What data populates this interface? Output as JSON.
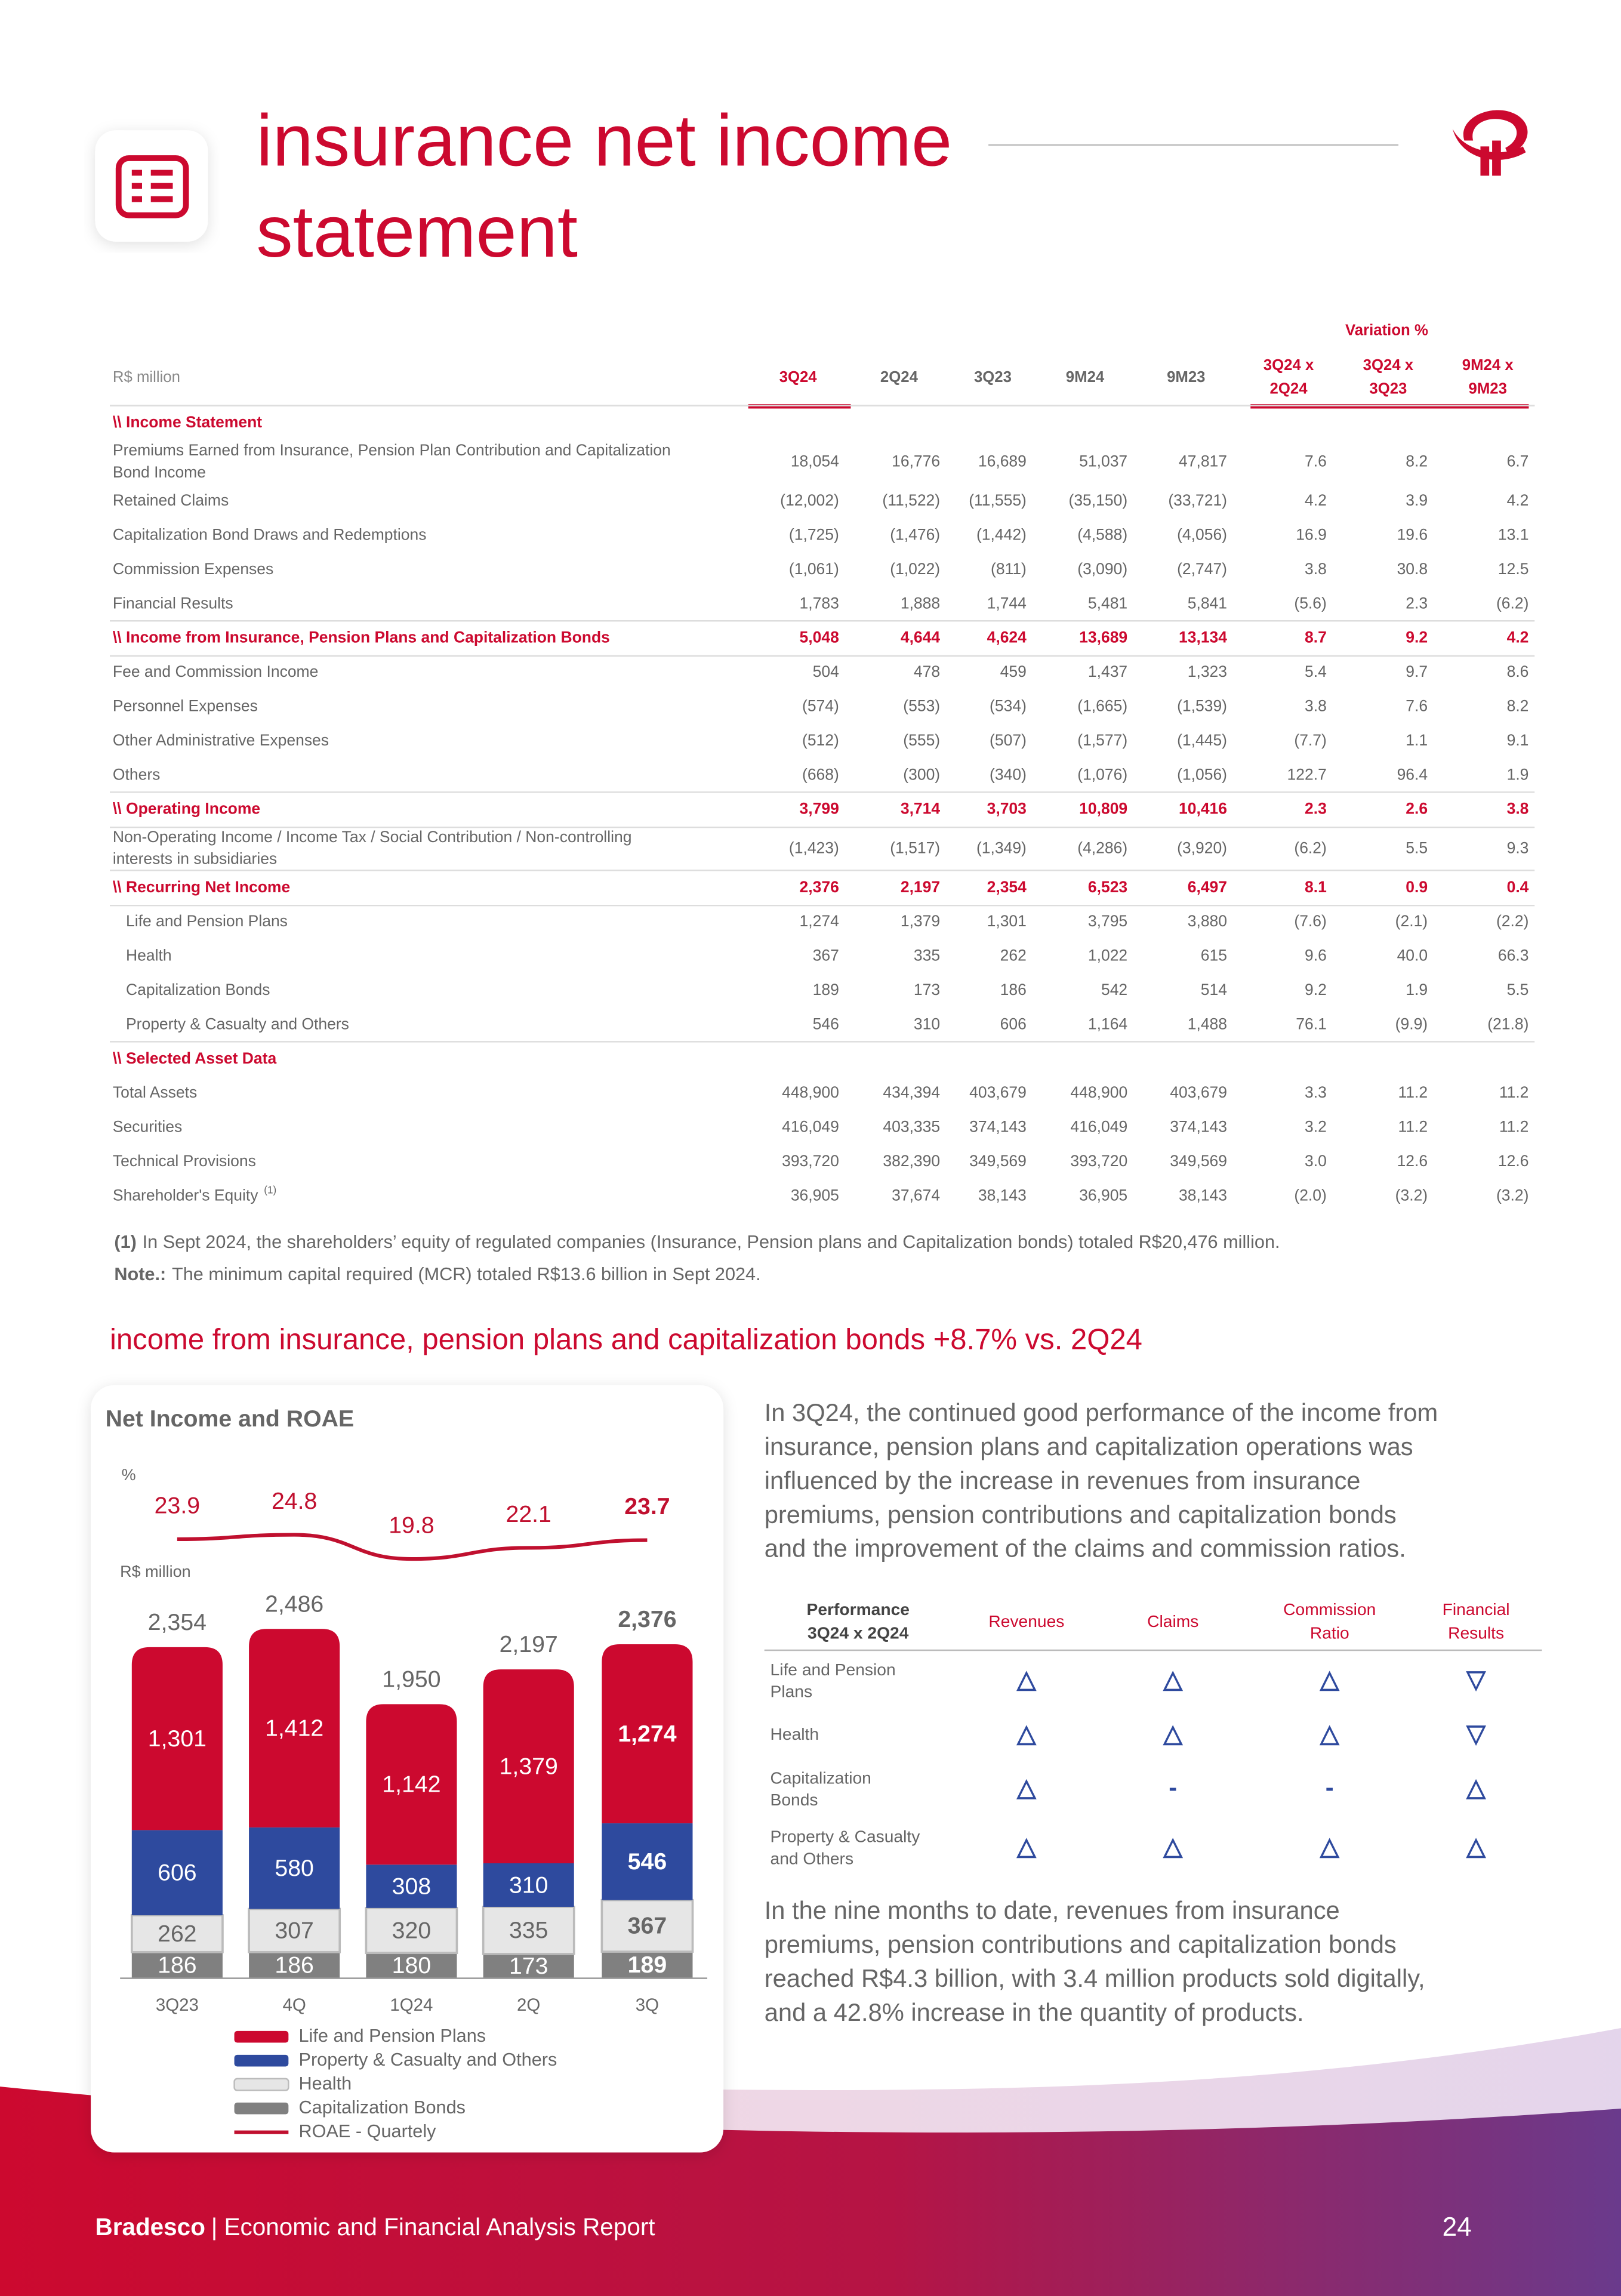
{
  "header": {
    "title_lines": [
      "insurance net income",
      "statement"
    ]
  },
  "table": {
    "unit": "R$ million",
    "variation_label": "Variation %",
    "columns": [
      [
        "3Q24"
      ],
      [
        "2Q24"
      ],
      [
        "3Q23"
      ],
      [
        "9M24"
      ],
      [
        "9M23"
      ],
      [
        "3Q24 x",
        "2Q24"
      ],
      [
        "3Q24 x",
        "3Q23"
      ],
      [
        "9M24 x",
        "9M23"
      ]
    ],
    "rows": [
      {
        "label": [
          "\\\\ Income Statement"
        ],
        "style": "section"
      },
      {
        "label": [
          "Premiums Earned from Insurance, Pension Plan Contribution and Capitalization",
          "Bond Income"
        ],
        "values": [
          "18,054",
          "16,776",
          "16,689",
          "51,037",
          "47,817",
          "7.6",
          "8.2",
          "6.7"
        ]
      },
      {
        "label": [
          "Retained Claims"
        ],
        "values": [
          "(12,002)",
          "(11,522)",
          "(11,555)",
          "(35,150)",
          "(33,721)",
          "4.2",
          "3.9",
          "4.2"
        ]
      },
      {
        "label": [
          "Capitalization Bond Draws and Redemptions"
        ],
        "values": [
          "(1,725)",
          "(1,476)",
          "(1,442)",
          "(4,588)",
          "(4,056)",
          "16.9",
          "19.6",
          "13.1"
        ]
      },
      {
        "label": [
          "Commission Expenses"
        ],
        "values": [
          "(1,061)",
          "(1,022)",
          "(811)",
          "(3,090)",
          "(2,747)",
          "3.8",
          "30.8",
          "12.5"
        ]
      },
      {
        "label": [
          "Financial Results"
        ],
        "values": [
          "1,783",
          "1,888",
          "1,744",
          "5,481",
          "5,841",
          "(5.6)",
          "2.3",
          "(6.2)"
        ]
      },
      {
        "label": [
          "\\\\ Income from Insurance, Pension Plans and Capitalization Bonds"
        ],
        "style": "total",
        "values": [
          "5,048",
          "4,644",
          "4,624",
          "13,689",
          "13,134",
          "8.7",
          "9.2",
          "4.2"
        ]
      },
      {
        "label": [
          "Fee and Commission Income"
        ],
        "values": [
          "504",
          "478",
          "459",
          "1,437",
          "1,323",
          "5.4",
          "9.7",
          "8.6"
        ]
      },
      {
        "label": [
          "Personnel Expenses"
        ],
        "values": [
          "(574)",
          "(553)",
          "(534)",
          "(1,665)",
          "(1,539)",
          "3.8",
          "7.6",
          "8.2"
        ]
      },
      {
        "label": [
          "Other Administrative Expenses"
        ],
        "values": [
          "(512)",
          "(555)",
          "(507)",
          "(1,577)",
          "(1,445)",
          "(7.7)",
          "1.1",
          "9.1"
        ]
      },
      {
        "label": [
          "Others"
        ],
        "values": [
          "(668)",
          "(300)",
          "(340)",
          "(1,076)",
          "(1,056)",
          "122.7",
          "96.4",
          "1.9"
        ]
      },
      {
        "label": [
          "\\\\ Operating Income"
        ],
        "style": "total",
        "values": [
          "3,799",
          "3,714",
          "3,703",
          "10,809",
          "10,416",
          "2.3",
          "2.6",
          "3.8"
        ]
      },
      {
        "label": [
          "Non-Operating Income / Income Tax / Social Contribution / Non-controlling",
          "interests in subsidiaries"
        ],
        "values": [
          "(1,423)",
          "(1,517)",
          "(1,349)",
          "(4,286)",
          "(3,920)",
          "(6.2)",
          "5.5",
          "9.3"
        ]
      },
      {
        "label": [
          "\\\\ Recurring Net Income"
        ],
        "style": "total",
        "values": [
          "2,376",
          "2,197",
          "2,354",
          "6,523",
          "6,497",
          "8.1",
          "0.9",
          "0.4"
        ]
      },
      {
        "label": [
          "Life and Pension Plans"
        ],
        "style": "sub",
        "values": [
          "1,274",
          "1,379",
          "1,301",
          "3,795",
          "3,880",
          "(7.6)",
          "(2.1)",
          "(2.2)"
        ]
      },
      {
        "label": [
          "Health"
        ],
        "style": "sub",
        "values": [
          "367",
          "335",
          "262",
          "1,022",
          "615",
          "9.6",
          "40.0",
          "66.3"
        ]
      },
      {
        "label": [
          "Capitalization Bonds"
        ],
        "style": "sub",
        "values": [
          "189",
          "173",
          "186",
          "542",
          "514",
          "9.2",
          "1.9",
          "5.5"
        ]
      },
      {
        "label": [
          "Property & Casualty and Others"
        ],
        "style": "sub",
        "values": [
          "546",
          "310",
          "606",
          "1,164",
          "1,488",
          "76.1",
          "(9.9)",
          "(21.8)"
        ]
      },
      {
        "label": [
          "\\\\ Selected Asset Data"
        ],
        "style": "section"
      },
      {
        "label": [
          "Total Assets"
        ],
        "values": [
          "448,900",
          "434,394",
          "403,679",
          "448,900",
          "403,679",
          "3.3",
          "11.2",
          "11.2"
        ]
      },
      {
        "label": [
          "Securities"
        ],
        "values": [
          "416,049",
          "403,335",
          "374,143",
          "416,049",
          "374,143",
          "3.2",
          "11.2",
          "11.2"
        ]
      },
      {
        "label": [
          "Technical Provisions"
        ],
        "values": [
          "393,720",
          "382,390",
          "349,569",
          "393,720",
          "349,569",
          "3.0",
          "12.6",
          "12.6"
        ]
      },
      {
        "label": [
          "Shareholder's Equity"
        ],
        "note": "(1)",
        "values": [
          "36,905",
          "37,674",
          "38,143",
          "36,905",
          "38,143",
          "(2.0)",
          "(3.2)",
          "(3.2)"
        ]
      }
    ]
  },
  "notes": [
    {
      "lead": "(1)",
      "text": "In Sept 2024, the shareholders’ equity of regulated companies (Insurance, Pension plans and Capitalization bonds) totaled R$20,476 million."
    },
    {
      "lead": "Note.:",
      "text": "The minimum capital required (MCR) totaled R$13.6 billion in Sept 2024."
    }
  ],
  "section_title": "income from insurance, pension plans and capitalization bonds +8.7% vs. 2Q24",
  "chart_data": {
    "type": "bar",
    "stacked": true,
    "title": "Net Income and ROAE",
    "line_unit": "%",
    "bar_unit": "R$ million",
    "categories": [
      "3Q23",
      "4Q",
      "1Q24",
      "2Q",
      "3Q"
    ],
    "totals": [
      2354,
      2486,
      1950,
      2197,
      2376
    ],
    "total_labels": [
      "2,354",
      "2,486",
      "1,950",
      "2,197",
      "2,376"
    ],
    "series": [
      {
        "name": "Life and Pension Plans",
        "color": "#cc092f",
        "values": [
          1301,
          1412,
          1142,
          1379,
          1274
        ],
        "value_labels": [
          "1,301",
          "1,412",
          "1,142",
          "1,379",
          "1,274"
        ]
      },
      {
        "name": "Property & Casualty and Others",
        "color": "#2e4a9e",
        "values": [
          606,
          580,
          308,
          310,
          546
        ]
      },
      {
        "name": "Health",
        "color": "#e6e6e6",
        "values": [
          262,
          307,
          320,
          335,
          367
        ]
      },
      {
        "name": "Capitalization Bonds",
        "color": "#808080",
        "values": [
          186,
          186,
          180,
          173,
          189
        ]
      },
      {
        "name": "ROAE - Quartely",
        "color": "#c0102f",
        "type": "line",
        "values": [
          23.9,
          24.8,
          19.8,
          22.1,
          23.7
        ]
      }
    ]
  },
  "paragraphs": [
    [
      "In 3Q24, the continued good performance of the income from",
      "insurance, pension plans and capitalization operations was",
      "influenced by the increase in revenues from insurance",
      "premiums, pension contributions and capitalization bonds",
      "and the improvement of the claims and commission ratios."
    ],
    [
      "In the nine months to date, revenues from insurance",
      "premiums, pension contributions and capitalization bonds",
      "reached R$4.3 billion, with 3.4 million products sold digitally,",
      "and a 42.8% increase in the quantity of products."
    ]
  ],
  "performance": {
    "headers": [
      [
        "Performance",
        "3Q24 x 2Q24"
      ],
      [
        "Revenues"
      ],
      [
        "Claims"
      ],
      [
        "Commission",
        "Ratio"
      ],
      [
        "Financial",
        "Results"
      ]
    ],
    "rows": [
      {
        "label": [
          "Life and Pension",
          "Plans"
        ],
        "cells": [
          "△",
          "△",
          "△",
          "▽"
        ]
      },
      {
        "label": [
          "Health"
        ],
        "cells": [
          "△",
          "△",
          "△",
          "▽"
        ]
      },
      {
        "label": [
          "Capitalization",
          "Bonds"
        ],
        "cells": [
          "△",
          "-",
          "-",
          "△"
        ]
      },
      {
        "label": [
          "Property & Casualty",
          "and Others"
        ],
        "cells": [
          "△",
          "△",
          "△",
          "△"
        ]
      }
    ]
  },
  "footer": {
    "brand": "Bradesco",
    "report": "| Economic and Financial Analysis Report",
    "page": "24"
  }
}
